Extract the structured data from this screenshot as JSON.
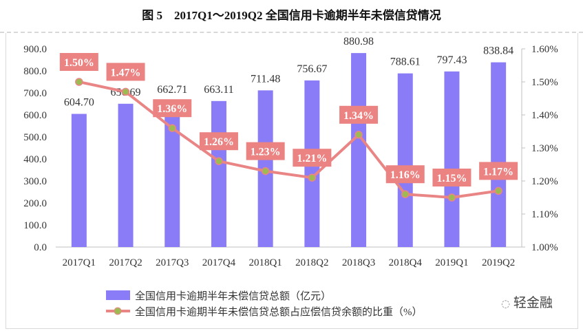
{
  "title": "图 5　2017Q1～2019Q2 全国信用卡逾期半年未偿信贷情况",
  "watermark": "轻金融",
  "chart_data": {
    "type": "bar+line",
    "categories": [
      "2017Q1",
      "2017Q2",
      "2017Q3",
      "2017Q4",
      "2018Q1",
      "2018Q2",
      "2018Q3",
      "2018Q4",
      "2019Q1",
      "2019Q2"
    ],
    "series": [
      {
        "name": "全国信用卡逾期半年未偿信贷总额（亿元）",
        "type": "bar",
        "axis": "left",
        "color": "#8a7cf6",
        "values": [
          604.7,
          650.69,
          662.71,
          663.11,
          711.48,
          756.67,
          880.98,
          788.61,
          797.43,
          838.84
        ],
        "labels": [
          "604.70",
          "650.69",
          "662.71",
          "663.11",
          "711.48",
          "756.67",
          "880.98",
          "788.61",
          "797.43",
          "838.84"
        ]
      },
      {
        "name": "全国信用卡逾期半年未偿信贷总额占应偿信贷余额的比重（%）",
        "type": "line",
        "axis": "right",
        "color": "#ea8585",
        "marker_color": "#9dbb52",
        "values": [
          1.5,
          1.47,
          1.36,
          1.26,
          1.23,
          1.21,
          1.34,
          1.16,
          1.15,
          1.17
        ],
        "labels": [
          "1.50%",
          "1.47%",
          "1.36%",
          "1.26%",
          "1.23%",
          "1.21%",
          "1.34%",
          "1.16%",
          "1.15%",
          "1.17%"
        ]
      }
    ],
    "y_left": {
      "range": [
        0,
        900
      ],
      "ticks": [
        "0.0",
        "100.0",
        "200.0",
        "300.0",
        "400.0",
        "500.0",
        "600.0",
        "700.0",
        "800.0",
        "900.0"
      ]
    },
    "y_right": {
      "range": [
        1.0,
        1.6
      ],
      "ticks": [
        "1.00%",
        "1.10%",
        "1.20%",
        "1.30%",
        "1.40%",
        "1.50%",
        "1.60%"
      ]
    },
    "grid": false,
    "legend": "bottom"
  }
}
